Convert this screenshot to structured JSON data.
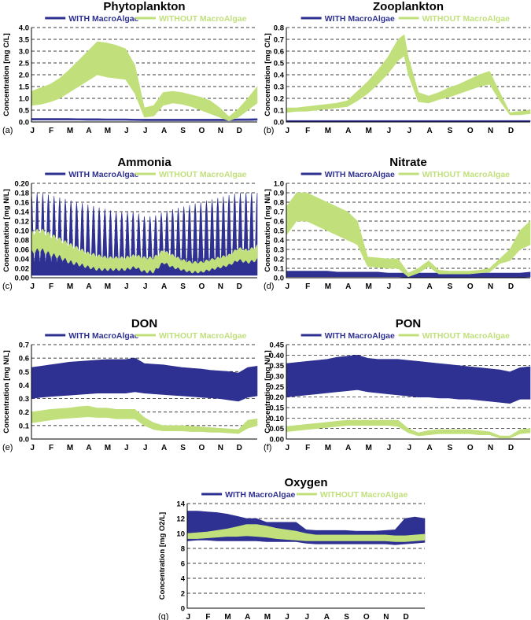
{
  "colors": {
    "with": "#2e3192",
    "without": "#c1e07c"
  },
  "legend": {
    "with_label": "WITH MacroAlgae",
    "without_label": "WITHOUT MacroAlgae"
  },
  "months": [
    "J",
    "F",
    "M",
    "A",
    "M",
    "J",
    "J",
    "A",
    "S",
    "O",
    "N",
    "D"
  ],
  "chart_data": [
    {
      "type": "area",
      "panel_label": "(a)",
      "title": "Phytoplankton",
      "ylabel": "Concentration [mg C/L]",
      "ylim": [
        0,
        4.0
      ],
      "yticks": [
        "0.0",
        "0.5",
        "1.0",
        "1.5",
        "2.0",
        "2.5",
        "3.0",
        "3.5",
        "4.0"
      ],
      "x": [
        0,
        0.5,
        1,
        1.5,
        2,
        2.5,
        3,
        3.5,
        4,
        4.5,
        5,
        5.5,
        6,
        6.5,
        7,
        7.5,
        8,
        8.5,
        9,
        9.5,
        10,
        10.5,
        11,
        11.5,
        12
      ],
      "series": [
        {
          "name": "WITH MacroAlgae",
          "upper": [
            0.15,
            0.15,
            0.15,
            0.15,
            0.15,
            0.14,
            0.14,
            0.14,
            0.13,
            0.13,
            0.13,
            0.12,
            0.12,
            0.12,
            0.12,
            0.12,
            0.12,
            0.12,
            0.12,
            0.12,
            0.12,
            0.12,
            0.13,
            0.13,
            0.14
          ],
          "lower": [
            0.08,
            0.08,
            0.08,
            0.08,
            0.08,
            0.08,
            0.07,
            0.07,
            0.07,
            0.07,
            0.07,
            0.06,
            0.05,
            0.05,
            0.05,
            0.05,
            0.05,
            0.05,
            0.05,
            0.05,
            0.05,
            0.05,
            0.06,
            0.06,
            0.07
          ]
        },
        {
          "name": "WITHOUT MacroAlgae",
          "upper": [
            1.3,
            1.45,
            1.6,
            1.85,
            2.2,
            2.6,
            3.0,
            3.4,
            3.35,
            3.25,
            3.1,
            2.4,
            0.6,
            0.7,
            1.25,
            1.3,
            1.25,
            1.15,
            1.05,
            0.9,
            0.6,
            0.22,
            0.55,
            1.0,
            1.5
          ],
          "lower": [
            0.7,
            0.75,
            0.85,
            1.0,
            1.25,
            1.5,
            1.75,
            2.0,
            1.9,
            1.85,
            1.8,
            1.2,
            0.2,
            0.25,
            0.7,
            0.8,
            0.75,
            0.65,
            0.5,
            0.35,
            0.2,
            0.05,
            0.2,
            0.5,
            0.8
          ]
        }
      ]
    },
    {
      "type": "area",
      "panel_label": "(b)",
      "title": "Zooplankton",
      "ylabel": "Concentration [mg C/L]",
      "ylim": [
        0,
        0.8
      ],
      "yticks": [
        "0.0",
        "0.1",
        "0.2",
        "0.3",
        "0.4",
        "0.5",
        "0.6",
        "0.7",
        "0.8"
      ],
      "x": [
        0,
        0.5,
        1,
        1.5,
        2,
        2.5,
        3,
        3.5,
        4,
        4.5,
        5,
        5.5,
        5.8,
        6,
        6.5,
        7,
        7.5,
        8,
        8.5,
        9,
        9.5,
        10,
        10.5,
        11,
        11.5,
        12
      ],
      "series": [
        {
          "name": "WITH MacroAlgae",
          "upper": [
            0.012,
            0.012,
            0.012,
            0.012,
            0.012,
            0.012,
            0.012,
            0.012,
            0.012,
            0.012,
            0.012,
            0.012,
            0.012,
            0.012,
            0.012,
            0.012,
            0.012,
            0.012,
            0.012,
            0.012,
            0.012,
            0.012,
            0.012,
            0.012,
            0.012,
            0.012
          ],
          "lower": [
            0.003,
            0.003,
            0.003,
            0.003,
            0.003,
            0.003,
            0.003,
            0.003,
            0.003,
            0.003,
            0.003,
            0.003,
            0.003,
            0.003,
            0.003,
            0.003,
            0.003,
            0.003,
            0.003,
            0.003,
            0.003,
            0.003,
            0.003,
            0.003,
            0.003,
            0.003
          ]
        },
        {
          "name": "WITHOUT MacroAlgae",
          "upper": [
            0.12,
            0.12,
            0.13,
            0.14,
            0.15,
            0.16,
            0.18,
            0.26,
            0.34,
            0.44,
            0.55,
            0.7,
            0.74,
            0.55,
            0.25,
            0.22,
            0.25,
            0.29,
            0.32,
            0.36,
            0.4,
            0.43,
            0.25,
            0.08,
            0.09,
            0.1
          ],
          "lower": [
            0.08,
            0.09,
            0.09,
            0.1,
            0.11,
            0.12,
            0.13,
            0.18,
            0.24,
            0.32,
            0.41,
            0.52,
            0.56,
            0.4,
            0.17,
            0.16,
            0.19,
            0.21,
            0.24,
            0.27,
            0.3,
            0.32,
            0.18,
            0.06,
            0.06,
            0.07
          ]
        }
      ]
    },
    {
      "type": "area",
      "panel_label": "(c)",
      "title": "Ammonia",
      "ylabel": "Concentration [mg N/L]",
      "ylim": [
        0,
        0.2
      ],
      "yticks": [
        "0.00",
        "0.02",
        "0.04",
        "0.06",
        "0.08",
        "0.10",
        "0.12",
        "0.14",
        "0.16",
        "0.18",
        "0.20"
      ],
      "oscillating": true,
      "x": [
        0,
        0.5,
        1,
        1.5,
        2,
        2.5,
        3,
        3.5,
        4,
        4.5,
        5,
        5.5,
        6,
        6.5,
        7,
        7.5,
        8,
        8.5,
        9,
        9.5,
        10,
        10.5,
        11,
        11.5,
        12
      ],
      "series": [
        {
          "name": "WITH MacroAlgae",
          "upper": [
            0.18,
            0.18,
            0.175,
            0.17,
            0.165,
            0.16,
            0.155,
            0.15,
            0.145,
            0.14,
            0.14,
            0.14,
            0.13,
            0.13,
            0.14,
            0.145,
            0.15,
            0.155,
            0.16,
            0.165,
            0.17,
            0.175,
            0.18,
            0.18,
            0.18
          ],
          "lower": [
            0.005,
            0.005,
            0.005,
            0.005,
            0.005,
            0.005,
            0.005,
            0.005,
            0.005,
            0.005,
            0.005,
            0.005,
            0.005,
            0.005,
            0.005,
            0.005,
            0.005,
            0.005,
            0.005,
            0.005,
            0.005,
            0.005,
            0.005,
            0.005,
            0.005
          ]
        },
        {
          "name": "WITHOUT MacroAlgae",
          "upper": [
            0.1,
            0.105,
            0.095,
            0.085,
            0.075,
            0.065,
            0.055,
            0.05,
            0.045,
            0.045,
            0.045,
            0.05,
            0.045,
            0.045,
            0.06,
            0.05,
            0.04,
            0.035,
            0.035,
            0.04,
            0.045,
            0.05,
            0.065,
            0.06,
            0.07
          ],
          "lower": [
            0.05,
            0.055,
            0.045,
            0.04,
            0.03,
            0.025,
            0.02,
            0.015,
            0.015,
            0.015,
            0.015,
            0.02,
            0.01,
            0.01,
            0.03,
            0.02,
            0.015,
            0.01,
            0.01,
            0.015,
            0.02,
            0.025,
            0.035,
            0.03,
            0.035
          ]
        }
      ]
    },
    {
      "type": "area",
      "panel_label": "(d)",
      "title": "Nitrate",
      "ylabel": "Concentration [mg N/L]",
      "ylim": [
        0,
        1.0
      ],
      "yticks": [
        "0.0",
        "0.1",
        "0.2",
        "0.3",
        "0.4",
        "0.5",
        "0.6",
        "0.7",
        "0.8",
        "0.9",
        "1.0"
      ],
      "x": [
        0,
        0.5,
        1,
        1.5,
        2,
        2.5,
        3,
        3.5,
        4,
        4.5,
        5,
        5.5,
        6,
        6.5,
        7,
        7.5,
        8,
        8.5,
        9,
        9.5,
        10,
        10.5,
        11,
        11.5,
        12
      ],
      "series": [
        {
          "name": "WITH MacroAlgae",
          "upper": [
            0.07,
            0.07,
            0.07,
            0.07,
            0.07,
            0.06,
            0.06,
            0.06,
            0.06,
            0.06,
            0.05,
            0.05,
            0.05,
            0.05,
            0.05,
            0.05,
            0.05,
            0.05,
            0.05,
            0.05,
            0.05,
            0.05,
            0.05,
            0.05,
            0.06
          ],
          "lower": [
            0.01,
            0.01,
            0.01,
            0.01,
            0.01,
            0.01,
            0.01,
            0.01,
            0.01,
            0.01,
            0.01,
            0.01,
            0.005,
            0.005,
            0.005,
            0.005,
            0.005,
            0.005,
            0.005,
            0.005,
            0.005,
            0.005,
            0.005,
            0.005,
            0.01
          ]
        },
        {
          "name": "WITHOUT MacroAlgae",
          "upper": [
            0.75,
            0.9,
            0.9,
            0.85,
            0.8,
            0.75,
            0.7,
            0.6,
            0.22,
            0.21,
            0.2,
            0.2,
            0.05,
            0.1,
            0.18,
            0.08,
            0.07,
            0.07,
            0.07,
            0.08,
            0.1,
            0.2,
            0.3,
            0.5,
            0.6
          ],
          "lower": [
            0.45,
            0.6,
            0.6,
            0.55,
            0.5,
            0.45,
            0.4,
            0.35,
            0.12,
            0.11,
            0.1,
            0.1,
            0.01,
            0.05,
            0.12,
            0.04,
            0.04,
            0.04,
            0.04,
            0.05,
            0.06,
            0.15,
            0.18,
            0.3,
            0.35
          ]
        }
      ]
    },
    {
      "type": "area",
      "panel_label": "(e)",
      "title": "DON",
      "ylabel": "Concentration [mg N/L]",
      "ylim": [
        0,
        0.7
      ],
      "yticks": [
        "0.0",
        "0.1",
        "0.2",
        "0.3",
        "0.4",
        "0.5",
        "0.6",
        "0.7"
      ],
      "x": [
        0,
        0.5,
        1,
        1.5,
        2,
        2.5,
        3,
        3.5,
        4,
        4.5,
        5,
        5.5,
        6,
        6.5,
        7,
        7.5,
        8,
        8.5,
        9,
        9.5,
        10,
        10.5,
        11,
        11.5,
        12
      ],
      "series": [
        {
          "name": "WITH MacroAlgae",
          "upper": [
            0.53,
            0.54,
            0.55,
            0.56,
            0.57,
            0.575,
            0.58,
            0.585,
            0.59,
            0.59,
            0.59,
            0.6,
            0.56,
            0.555,
            0.55,
            0.54,
            0.53,
            0.525,
            0.52,
            0.51,
            0.505,
            0.5,
            0.49,
            0.53,
            0.54
          ],
          "lower": [
            0.3,
            0.31,
            0.315,
            0.32,
            0.325,
            0.33,
            0.335,
            0.34,
            0.34,
            0.34,
            0.34,
            0.35,
            0.34,
            0.335,
            0.33,
            0.325,
            0.32,
            0.315,
            0.31,
            0.305,
            0.3,
            0.29,
            0.28,
            0.31,
            0.32
          ]
        },
        {
          "name": "WITHOUT MacroAlgae",
          "upper": [
            0.2,
            0.21,
            0.22,
            0.225,
            0.23,
            0.24,
            0.245,
            0.23,
            0.23,
            0.22,
            0.22,
            0.22,
            0.16,
            0.12,
            0.1,
            0.1,
            0.1,
            0.095,
            0.09,
            0.085,
            0.08,
            0.075,
            0.07,
            0.14,
            0.15
          ],
          "lower": [
            0.12,
            0.13,
            0.14,
            0.15,
            0.155,
            0.16,
            0.165,
            0.16,
            0.16,
            0.15,
            0.15,
            0.15,
            0.1,
            0.07,
            0.06,
            0.06,
            0.06,
            0.055,
            0.055,
            0.05,
            0.05,
            0.045,
            0.04,
            0.08,
            0.1
          ]
        }
      ]
    },
    {
      "type": "area",
      "panel_label": "(f)",
      "title": "PON",
      "ylabel": "Concentration [mg N/L]",
      "ylim": [
        0,
        0.45
      ],
      "yticks": [
        "0.00",
        "0.05",
        "0.10",
        "0.15",
        "0.20",
        "0.25",
        "0.30",
        "0.35",
        "0.40",
        "0.45"
      ],
      "x": [
        0,
        0.5,
        1,
        1.5,
        2,
        2.5,
        3,
        3.5,
        4,
        4.5,
        5,
        5.5,
        6,
        6.5,
        7,
        7.5,
        8,
        8.5,
        9,
        9.5,
        10,
        10.5,
        11,
        11.5,
        12
      ],
      "series": [
        {
          "name": "WITH MacroAlgae",
          "upper": [
            0.36,
            0.365,
            0.37,
            0.375,
            0.38,
            0.39,
            0.395,
            0.4,
            0.385,
            0.38,
            0.38,
            0.38,
            0.375,
            0.37,
            0.365,
            0.36,
            0.355,
            0.35,
            0.345,
            0.34,
            0.335,
            0.33,
            0.32,
            0.34,
            0.345
          ],
          "lower": [
            0.2,
            0.205,
            0.21,
            0.215,
            0.22,
            0.225,
            0.23,
            0.235,
            0.225,
            0.22,
            0.215,
            0.21,
            0.205,
            0.2,
            0.2,
            0.195,
            0.195,
            0.19,
            0.19,
            0.185,
            0.18,
            0.175,
            0.17,
            0.19,
            0.19
          ]
        },
        {
          "name": "WITHOUT MacroAlgae",
          "upper": [
            0.06,
            0.065,
            0.07,
            0.075,
            0.08,
            0.085,
            0.09,
            0.09,
            0.09,
            0.09,
            0.09,
            0.09,
            0.05,
            0.03,
            0.04,
            0.045,
            0.045,
            0.045,
            0.045,
            0.04,
            0.035,
            0.015,
            0.015,
            0.045,
            0.05
          ],
          "lower": [
            0.035,
            0.04,
            0.045,
            0.05,
            0.055,
            0.06,
            0.065,
            0.065,
            0.065,
            0.065,
            0.065,
            0.06,
            0.03,
            0.015,
            0.02,
            0.025,
            0.025,
            0.025,
            0.025,
            0.02,
            0.02,
            0.005,
            0.005,
            0.025,
            0.03
          ]
        }
      ]
    },
    {
      "type": "area",
      "panel_label": "(g)",
      "title": "Oxygen",
      "ylabel": "Concentration [mg O2/L]",
      "ylim": [
        0,
        14
      ],
      "yticks": [
        "0",
        "2",
        "4",
        "6",
        "8",
        "10",
        "12",
        "14"
      ],
      "x": [
        0,
        0.5,
        1,
        1.5,
        2,
        2.5,
        3,
        3.5,
        4,
        4.5,
        5,
        5.5,
        6,
        6.5,
        7,
        7.5,
        8,
        8.5,
        9,
        9.5,
        10,
        10.5,
        11,
        11.5,
        12
      ],
      "series": [
        {
          "name": "WITH MacroAlgae",
          "upper": [
            13.0,
            13.0,
            12.9,
            12.8,
            12.6,
            12.3,
            12.0,
            12.0,
            11.5,
            11.5,
            11.5,
            11.5,
            10.5,
            10.4,
            10.4,
            10.4,
            10.4,
            10.3,
            10.3,
            10.3,
            10.4,
            10.5,
            12.0,
            12.2,
            12.0
          ],
          "lower": [
            9.0,
            9.1,
            9.1,
            9.0,
            9.0,
            9.0,
            9.0,
            9.0,
            8.9,
            8.9,
            8.9,
            8.9,
            8.7,
            8.6,
            8.6,
            8.6,
            8.6,
            8.6,
            8.6,
            8.6,
            8.6,
            8.5,
            8.6,
            8.7,
            8.8
          ]
        },
        {
          "name": "WITHOUT MacroAlgae",
          "upper": [
            10.0,
            10.1,
            10.2,
            10.4,
            10.6,
            10.9,
            11.2,
            11.2,
            11.0,
            10.7,
            10.5,
            10.3,
            10.0,
            9.8,
            9.8,
            9.8,
            9.8,
            9.8,
            9.8,
            9.8,
            9.8,
            9.7,
            9.7,
            9.8,
            9.9
          ],
          "lower": [
            9.3,
            9.3,
            9.4,
            9.5,
            9.6,
            9.6,
            9.7,
            9.6,
            9.5,
            9.3,
            9.2,
            9.1,
            9.0,
            9.0,
            9.0,
            9.0,
            9.0,
            9.0,
            9.0,
            9.0,
            9.0,
            8.9,
            8.9,
            9.0,
            9.1
          ]
        }
      ]
    }
  ]
}
